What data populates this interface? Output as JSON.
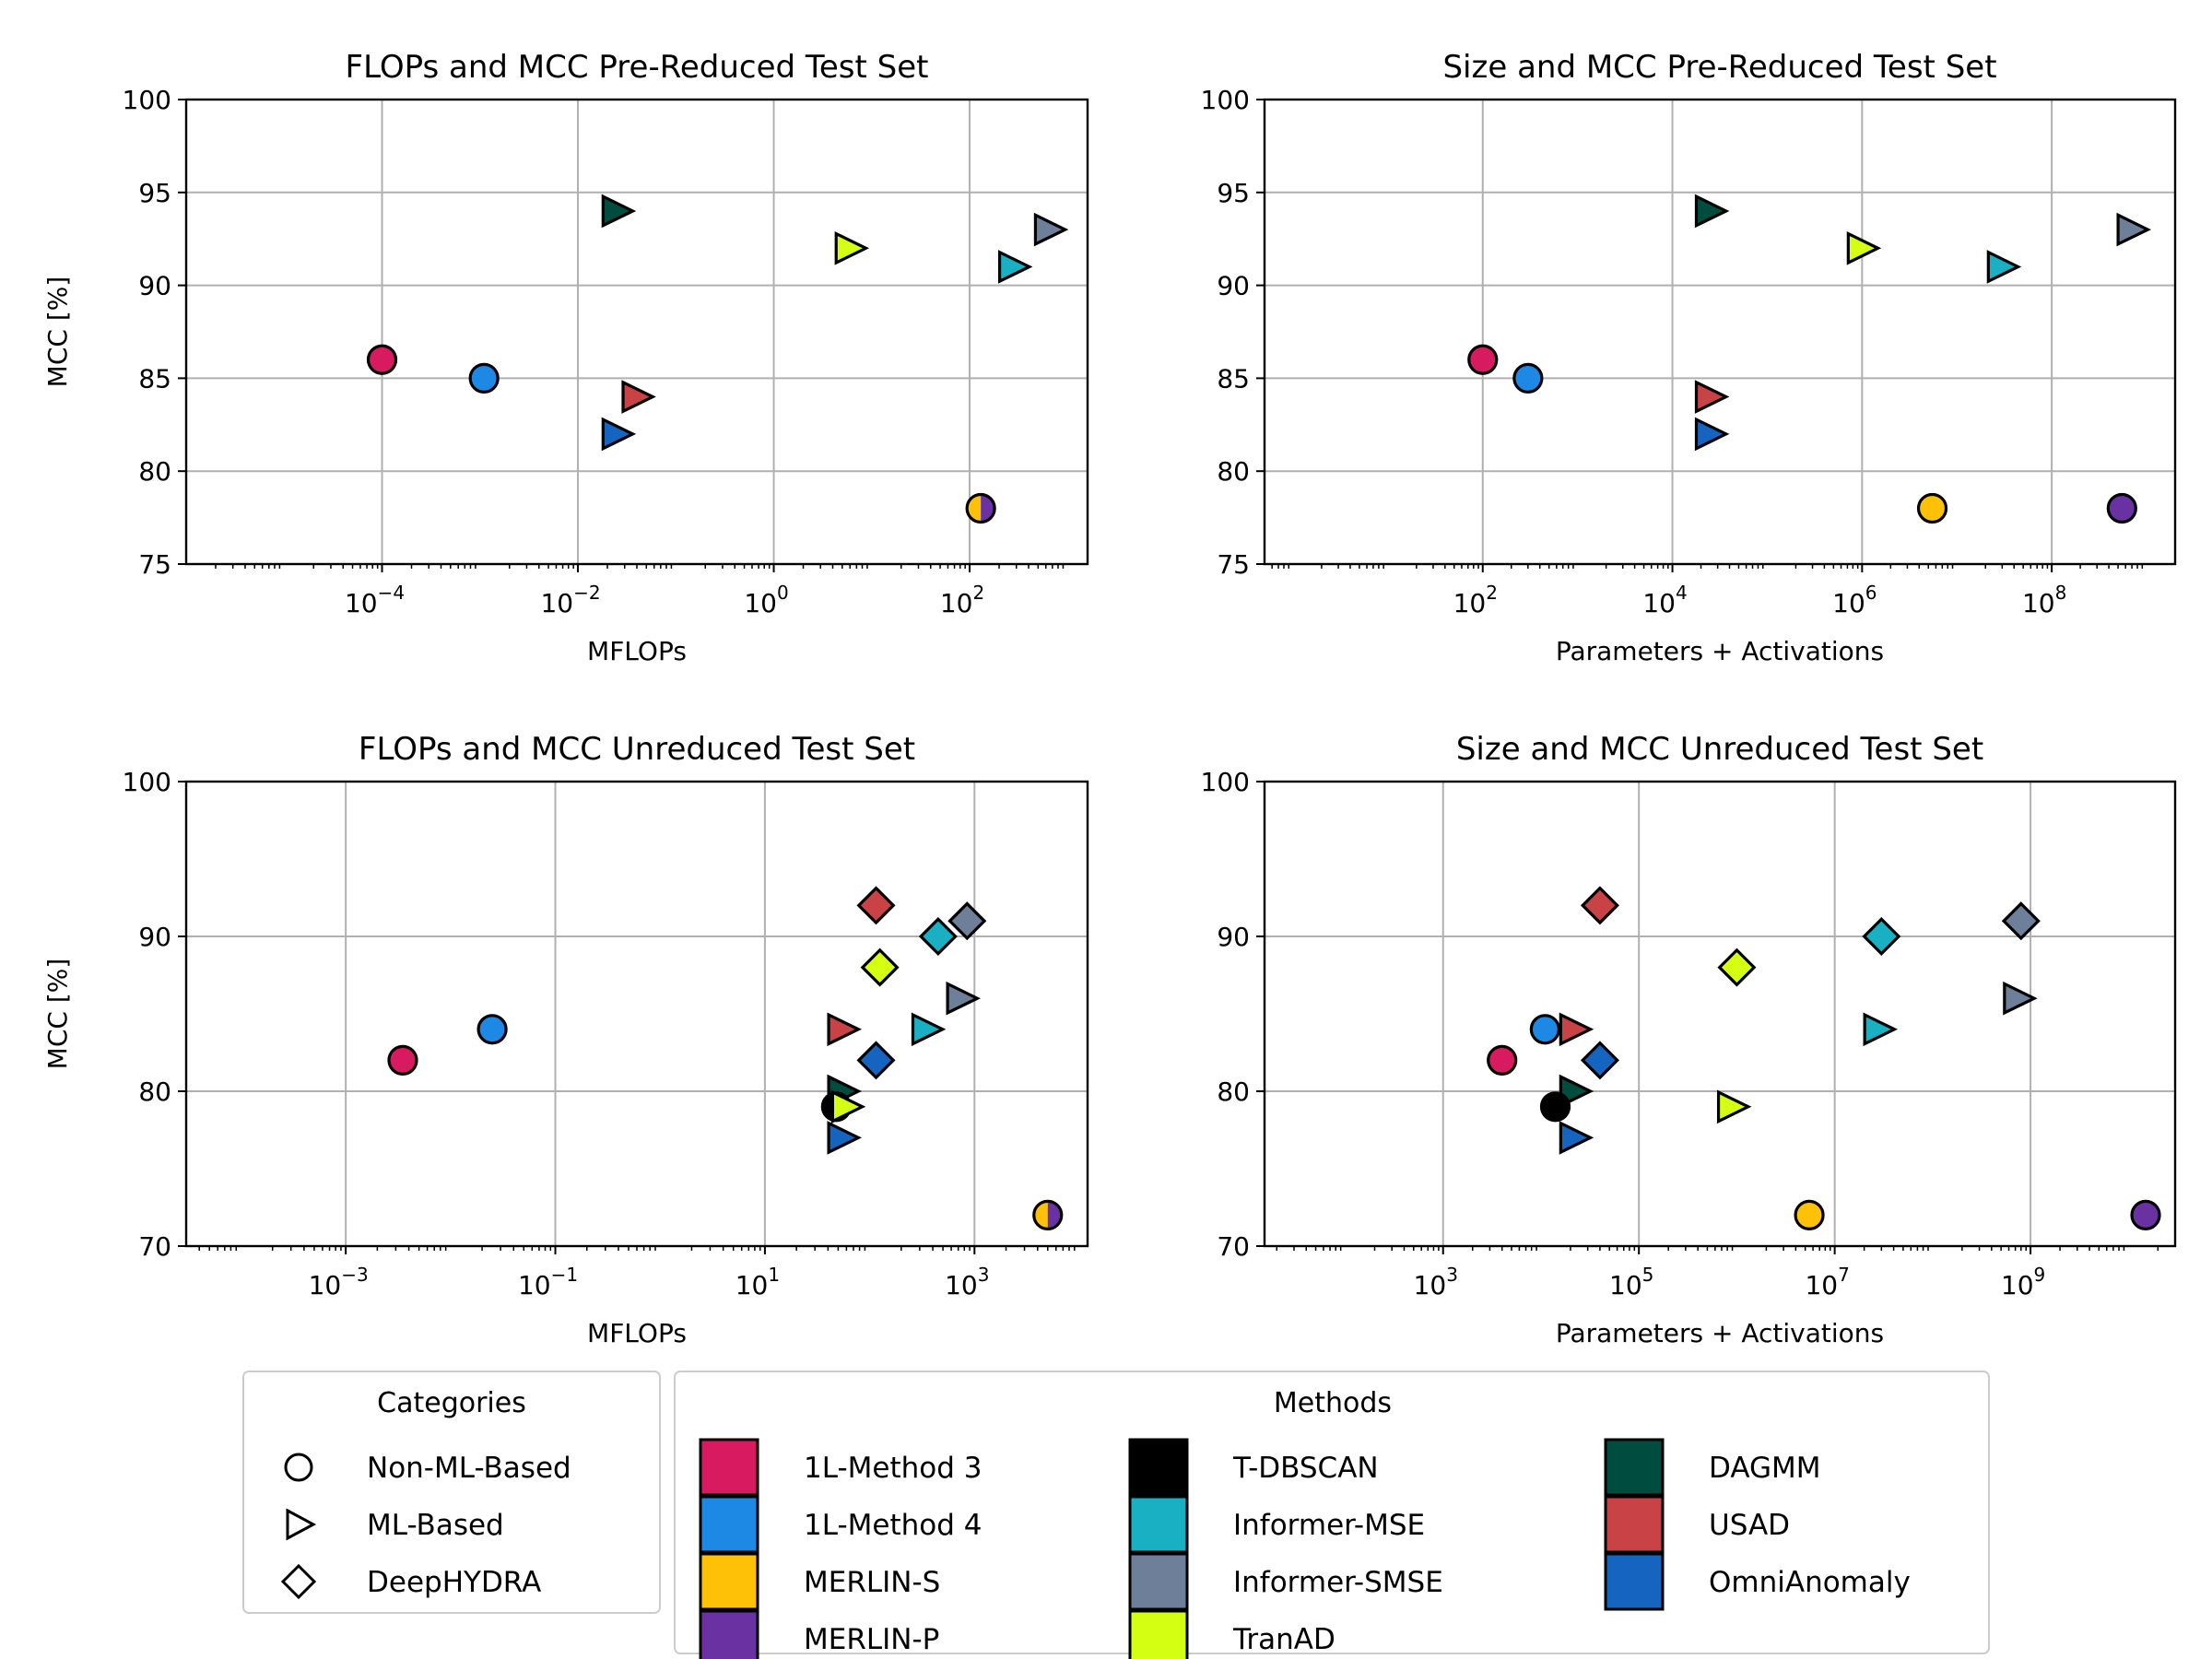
{
  "colors": {
    "1L-Method 3": "#d81b60",
    "1L-Method 4": "#1e88e5",
    "MERLIN-S": "#ffc107",
    "MERLIN-P": "#6a31a2",
    "T-DBSCAN": "#000000",
    "Informer-MSE": "#1ab0c4",
    "Informer-SMSE": "#6e7f9a",
    "TranAD": "#d4ff12",
    "DAGMM": "#004d40",
    "USAD": "#c94245",
    "OmniAnomaly": "#1565c0"
  },
  "chart_data": [
    {
      "type": "scatter",
      "title": "FLOPs and MCC Pre-Reduced Test Set",
      "xlabel": "MFLOPs",
      "ylabel": "MCC [%]",
      "xscale": "log",
      "xlim": [
        1e-06,
        1600
      ],
      "ylim": [
        75,
        100
      ],
      "xticks": [
        {
          "base": "10",
          "exp": "−4",
          "v": 0.0001
        },
        {
          "base": "10",
          "exp": "−2",
          "v": 0.01
        },
        {
          "base": "10",
          "exp": "0",
          "v": 1
        },
        {
          "base": "10",
          "exp": "2",
          "v": 100
        }
      ],
      "yticks": [
        "75",
        "80",
        "85",
        "90",
        "95",
        "100"
      ],
      "grid": true,
      "points": [
        {
          "method": "1L-Method 3",
          "category": "Non-ML-Based",
          "x": 0.0001,
          "y": 86
        },
        {
          "method": "1L-Method 4",
          "category": "Non-ML-Based",
          "x": 0.0011,
          "y": 85
        },
        {
          "method": "DAGMM",
          "category": "ML-Based",
          "x": 0.025,
          "y": 94
        },
        {
          "method": "OmniAnomaly",
          "category": "ML-Based",
          "x": 0.025,
          "y": 82
        },
        {
          "method": "USAD",
          "category": "ML-Based",
          "x": 0.04,
          "y": 84
        },
        {
          "method": "TranAD",
          "category": "ML-Based",
          "x": 6,
          "y": 92
        },
        {
          "method": "Informer-MSE",
          "category": "ML-Based",
          "x": 280,
          "y": 91
        },
        {
          "method": "Informer-SMSE",
          "category": "ML-Based",
          "x": 650,
          "y": 93
        },
        {
          "method": "MERLIN-S",
          "method2": "MERLIN-P",
          "category": "Non-ML-Based",
          "x": 130,
          "y": 78
        }
      ]
    },
    {
      "type": "scatter",
      "title": "Size and MCC Pre-Reduced Test Set",
      "xlabel": "Parameters + Activations",
      "ylabel": "",
      "xscale": "log",
      "xlim": [
        0.5,
        2000000000
      ],
      "ylim": [
        75,
        100
      ],
      "xticks": [
        {
          "base": "10",
          "exp": "2",
          "v": 100
        },
        {
          "base": "10",
          "exp": "4",
          "v": 10000
        },
        {
          "base": "10",
          "exp": "6",
          "v": 1000000
        },
        {
          "base": "10",
          "exp": "8",
          "v": 100000000
        }
      ],
      "yticks": [
        "75",
        "80",
        "85",
        "90",
        "95",
        "100"
      ],
      "grid": true,
      "points": [
        {
          "method": "1L-Method 3",
          "category": "Non-ML-Based",
          "x": 100,
          "y": 86
        },
        {
          "method": "1L-Method 4",
          "category": "Non-ML-Based",
          "x": 300,
          "y": 85
        },
        {
          "method": "DAGMM",
          "category": "ML-Based",
          "x": 25000,
          "y": 94
        },
        {
          "method": "USAD",
          "category": "ML-Based",
          "x": 25000,
          "y": 84
        },
        {
          "method": "OmniAnomaly",
          "category": "ML-Based",
          "x": 25000,
          "y": 82
        },
        {
          "method": "TranAD",
          "category": "ML-Based",
          "x": 1000000,
          "y": 92
        },
        {
          "method": "Informer-MSE",
          "category": "ML-Based",
          "x": 30000000,
          "y": 91
        },
        {
          "method": "Informer-SMSE",
          "category": "ML-Based",
          "x": 700000000,
          "y": 93
        },
        {
          "method": "MERLIN-S",
          "category": "Non-ML-Based",
          "x": 5500000,
          "y": 78
        },
        {
          "method": "MERLIN-P",
          "category": "Non-ML-Based",
          "x": 550000000,
          "y": 78
        }
      ]
    },
    {
      "type": "scatter",
      "title": "FLOPs and MCC Unreduced Test Set",
      "xlabel": "MFLOPs",
      "ylabel": "MCC [%]",
      "xscale": "log",
      "xlim": [
        3e-05,
        12000
      ],
      "ylim": [
        70,
        100
      ],
      "xticks": [
        {
          "base": "10",
          "exp": "−3",
          "v": 0.001
        },
        {
          "base": "10",
          "exp": "−1",
          "v": 0.1
        },
        {
          "base": "10",
          "exp": "1",
          "v": 10
        },
        {
          "base": "10",
          "exp": "3",
          "v": 1000
        }
      ],
      "yticks": [
        "70",
        "80",
        "90",
        "100"
      ],
      "grid": true,
      "points": [
        {
          "method": "1L-Method 3",
          "category": "Non-ML-Based",
          "x": 0.0035,
          "y": 82
        },
        {
          "method": "1L-Method 4",
          "category": "Non-ML-Based",
          "x": 0.025,
          "y": 84
        },
        {
          "method": "USAD",
          "category": "DeepHYDRA",
          "x": 115,
          "y": 92
        },
        {
          "method": "Informer-MSE",
          "category": "DeepHYDRA",
          "x": 450,
          "y": 90
        },
        {
          "method": "Informer-SMSE",
          "category": "DeepHYDRA",
          "x": 850,
          "y": 91
        },
        {
          "method": "TranAD",
          "category": "DeepHYDRA",
          "x": 125,
          "y": 88
        },
        {
          "method": "Informer-SMSE",
          "category": "ML-Based",
          "x": 750,
          "y": 86
        },
        {
          "method": "USAD",
          "category": "ML-Based",
          "x": 55,
          "y": 84
        },
        {
          "method": "Informer-MSE",
          "category": "ML-Based",
          "x": 350,
          "y": 84
        },
        {
          "method": "OmniAnomaly",
          "category": "DeepHYDRA",
          "x": 115,
          "y": 82
        },
        {
          "method": "DAGMM",
          "category": "ML-Based",
          "x": 55,
          "y": 80
        },
        {
          "method": "T-DBSCAN",
          "category": "Non-ML-Based",
          "x": 48,
          "y": 79
        },
        {
          "method": "TranAD",
          "category": "ML-Based",
          "x": 60,
          "y": 79
        },
        {
          "method": "OmniAnomaly",
          "category": "ML-Based",
          "x": 55,
          "y": 77
        },
        {
          "method": "MERLIN-S",
          "method2": "MERLIN-P",
          "category": "Non-ML-Based",
          "x": 5000,
          "y": 72
        }
      ]
    },
    {
      "type": "scatter",
      "title": "Size and MCC Unreduced Test Set",
      "xlabel": "Parameters + Activations",
      "ylabel": "",
      "xscale": "log",
      "xlim": [
        15,
        30000000000
      ],
      "ylim": [
        70,
        100
      ],
      "xticks": [
        {
          "base": "10",
          "exp": "3",
          "v": 1000
        },
        {
          "base": "10",
          "exp": "5",
          "v": 100000
        },
        {
          "base": "10",
          "exp": "7",
          "v": 10000000
        },
        {
          "base": "10",
          "exp": "9",
          "v": 1000000000
        }
      ],
      "yticks": [
        "70",
        "80",
        "90",
        "100"
      ],
      "grid": true,
      "points": [
        {
          "method": "1L-Method 3",
          "category": "Non-ML-Based",
          "x": 4000,
          "y": 82
        },
        {
          "method": "1L-Method 4",
          "category": "Non-ML-Based",
          "x": 11000,
          "y": 84
        },
        {
          "method": "USAD",
          "category": "DeepHYDRA",
          "x": 40000,
          "y": 92
        },
        {
          "method": "Informer-MSE",
          "category": "DeepHYDRA",
          "x": 30000000,
          "y": 90
        },
        {
          "method": "Informer-SMSE",
          "category": "DeepHYDRA",
          "x": 800000000,
          "y": 91
        },
        {
          "method": "TranAD",
          "category": "DeepHYDRA",
          "x": 1000000,
          "y": 88
        },
        {
          "method": "Informer-SMSE",
          "category": "ML-Based",
          "x": 750000000,
          "y": 86
        },
        {
          "method": "USAD",
          "category": "ML-Based",
          "x": 22000,
          "y": 84
        },
        {
          "method": "Informer-MSE",
          "category": "ML-Based",
          "x": 28000000,
          "y": 84
        },
        {
          "method": "OmniAnomaly",
          "category": "DeepHYDRA",
          "x": 40000,
          "y": 82
        },
        {
          "method": "DAGMM",
          "category": "ML-Based",
          "x": 22000,
          "y": 80
        },
        {
          "method": "T-DBSCAN",
          "category": "Non-ML-Based",
          "x": 14000,
          "y": 79
        },
        {
          "method": "TranAD",
          "category": "ML-Based",
          "x": 900000,
          "y": 79
        },
        {
          "method": "OmniAnomaly",
          "category": "ML-Based",
          "x": 22000,
          "y": 77
        },
        {
          "method": "MERLIN-S",
          "category": "Non-ML-Based",
          "x": 5500000,
          "y": 72
        },
        {
          "method": "MERLIN-P",
          "category": "Non-ML-Based",
          "x": 15000000000,
          "y": 72
        }
      ]
    }
  ],
  "legend": {
    "categories": {
      "title": "Categories",
      "entries": [
        {
          "label": "Non-ML-Based",
          "marker": "circle"
        },
        {
          "label": "ML-Based",
          "marker": "triangle"
        },
        {
          "label": "DeepHYDRA",
          "marker": "diamond"
        }
      ]
    },
    "methods": {
      "title": "Methods",
      "columns": [
        [
          "1L-Method 3",
          "1L-Method 4",
          "MERLIN-S",
          "MERLIN-P"
        ],
        [
          "T-DBSCAN",
          "Informer-MSE",
          "Informer-SMSE",
          "TranAD"
        ],
        [
          "DAGMM",
          "USAD",
          "OmniAnomaly"
        ]
      ]
    }
  }
}
